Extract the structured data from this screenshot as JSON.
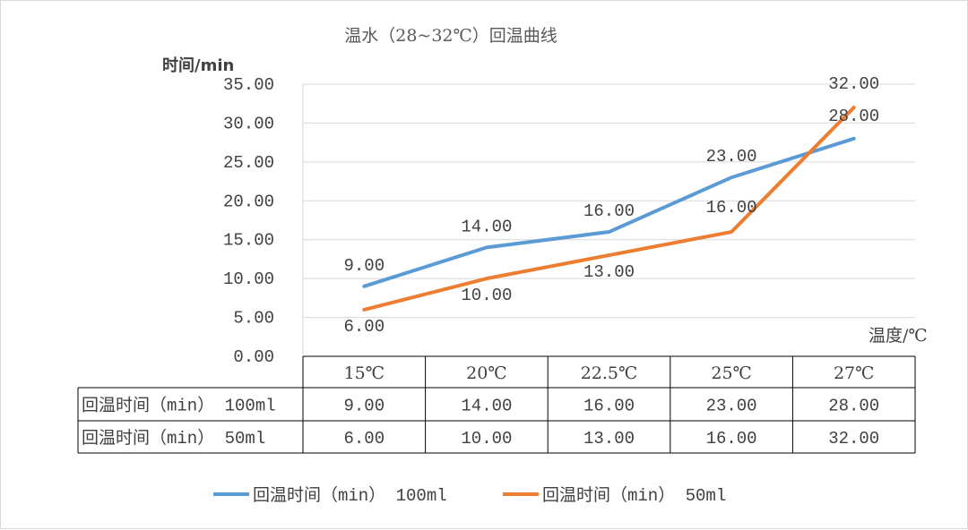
{
  "chart_data": {
    "type": "line",
    "title": "温水（28~32℃）回温曲线",
    "ylabel": "时间/min",
    "xlabel": "温度/℃",
    "ylim": [
      0,
      35
    ],
    "ytick_step": 5,
    "y_tick_labels": [
      "0.00",
      "5.00",
      "10.00",
      "15.00",
      "20.00",
      "25.00",
      "30.00",
      "35.00"
    ],
    "grid": true,
    "legend_position": "bottom",
    "categories": [
      "15℃",
      "20℃",
      "22.5℃",
      "25℃",
      "27℃"
    ],
    "series": [
      {
        "name": "回温时间（min） 100ml",
        "color": "#5B9BD5",
        "values": [
          9,
          14,
          16,
          23,
          28
        ],
        "labels": [
          "9.00",
          "14.00",
          "16.00",
          "23.00",
          "28.00"
        ]
      },
      {
        "name": "回温时间（min） 50ml",
        "color": "#ED7D31",
        "values": [
          6,
          10,
          13,
          16,
          32
        ],
        "labels": [
          "6.00",
          "10.00",
          "13.00",
          "16.00",
          "32.00"
        ]
      }
    ]
  }
}
